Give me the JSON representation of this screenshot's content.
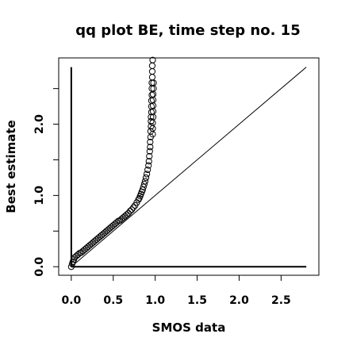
{
  "chart_data": {
    "type": "scatter",
    "title": "qq plot BE, time step no. 15",
    "xlabel": "SMOS data",
    "ylabel": "Best estimate",
    "xlim": [
      -0.15,
      2.95
    ],
    "ylim": [
      -0.12,
      2.93
    ],
    "x_ticks": [
      0.0,
      0.5,
      1.0,
      1.5,
      2.0,
      2.5
    ],
    "x_tick_labels": [
      "0.0",
      "0.5",
      "1.0",
      "1.5",
      "2.0",
      "2.5"
    ],
    "y_ticks": [
      0.0,
      0.5,
      1.0,
      1.5,
      2.0,
      2.5
    ],
    "y_tick_labels": [
      "0.0",
      "",
      "1.0",
      "",
      "2.0",
      ""
    ],
    "grid": false,
    "legend": "none",
    "marker": "open-circle",
    "reference_line": {
      "x": [
        0.0,
        2.8
      ],
      "y": [
        0.0,
        2.8
      ]
    },
    "axis_lines": [
      {
        "x": [
          0.0,
          0.0
        ],
        "y": [
          0.0,
          2.8
        ]
      },
      {
        "x": [
          0.0,
          2.8
        ],
        "y": [
          0.0,
          0.0
        ]
      }
    ],
    "series": [
      {
        "x": [
          0.0,
          0.01,
          0.02,
          0.03,
          0.04,
          0.06,
          0.08,
          0.1,
          0.12,
          0.14,
          0.16,
          0.18,
          0.2,
          0.22,
          0.24,
          0.26,
          0.28,
          0.3,
          0.32,
          0.34,
          0.36,
          0.38,
          0.4,
          0.42,
          0.44,
          0.46,
          0.48,
          0.5,
          0.52,
          0.54,
          0.56,
          0.58,
          0.6,
          0.62,
          0.64,
          0.66,
          0.68,
          0.7,
          0.72,
          0.74,
          0.76,
          0.78,
          0.8,
          0.81,
          0.82,
          0.83,
          0.84,
          0.85,
          0.86,
          0.87,
          0.88,
          0.89,
          0.9,
          0.91,
          0.92,
          0.925,
          0.93,
          0.935,
          0.94,
          0.94,
          0.945,
          0.945,
          0.95,
          0.95,
          0.95,
          0.955,
          0.955,
          0.955,
          0.96,
          0.96,
          0.96,
          0.965,
          0.965,
          0.965,
          0.97,
          0.97,
          0.97,
          0.97,
          0.975,
          0.975,
          0.975,
          0.975,
          0.975,
          0.98,
          0.98
        ],
        "y": [
          0.0,
          0.04,
          0.07,
          0.1,
          0.13,
          0.15,
          0.17,
          0.19,
          0.2,
          0.22,
          0.24,
          0.26,
          0.28,
          0.3,
          0.32,
          0.34,
          0.36,
          0.38,
          0.4,
          0.42,
          0.44,
          0.46,
          0.48,
          0.5,
          0.52,
          0.54,
          0.56,
          0.58,
          0.6,
          0.62,
          0.64,
          0.65,
          0.67,
          0.69,
          0.71,
          0.73,
          0.75,
          0.78,
          0.8,
          0.83,
          0.86,
          0.9,
          0.94,
          0.96,
          0.99,
          1.02,
          1.05,
          1.08,
          1.12,
          1.16,
          1.2,
          1.25,
          1.3,
          1.36,
          1.42,
          1.48,
          1.55,
          1.62,
          1.68,
          1.75,
          1.82,
          1.9,
          1.97,
          2.04,
          2.1,
          2.17,
          2.25,
          2.33,
          2.41,
          2.5,
          2.58,
          2.66,
          2.74,
          2.82,
          2.9,
          1.86,
          1.94,
          2.02,
          2.1,
          2.18,
          2.26,
          2.34,
          2.42,
          2.5,
          2.58
        ]
      }
    ]
  }
}
